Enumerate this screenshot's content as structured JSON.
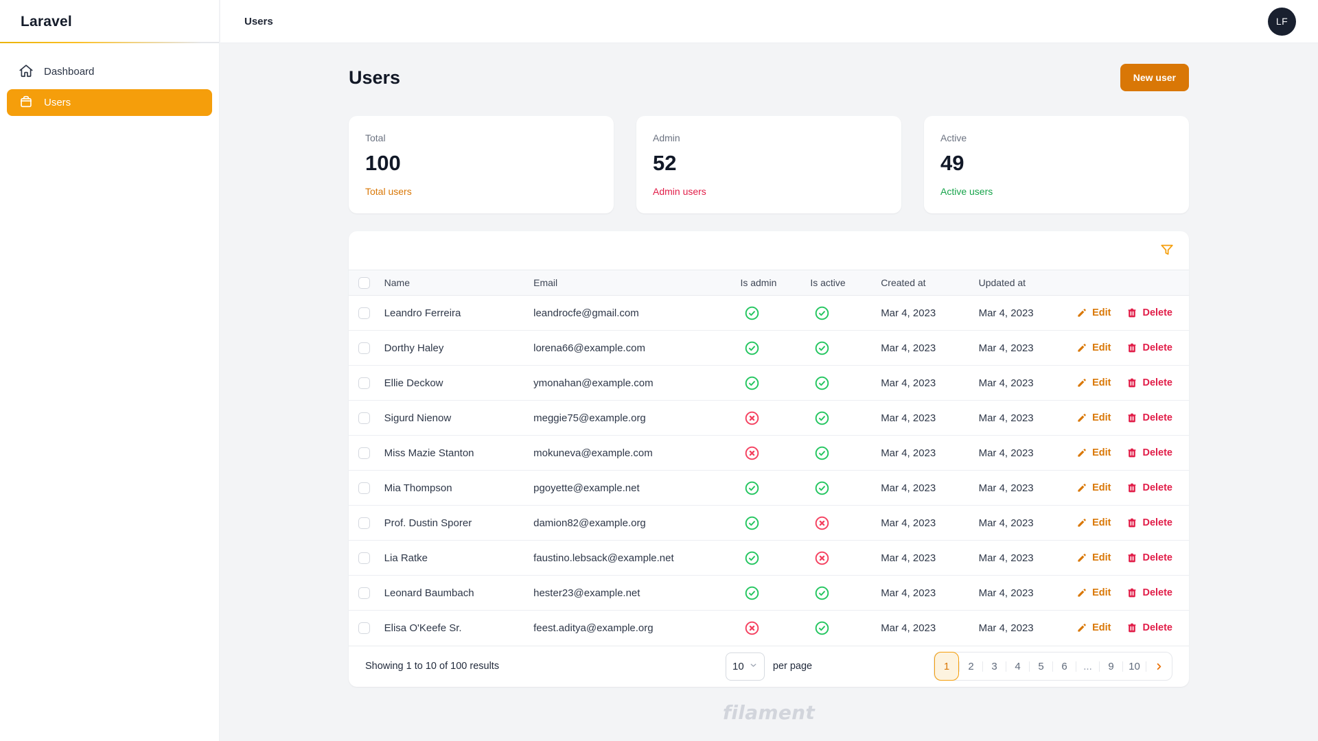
{
  "brand": "Laravel",
  "topbar": {
    "breadcrumb": "Users",
    "avatar_initials": "LF"
  },
  "sidebar": {
    "items": [
      {
        "label": "Dashboard",
        "icon": "home-icon",
        "active": false
      },
      {
        "label": "Users",
        "icon": "briefcase-icon",
        "active": true
      }
    ]
  },
  "page": {
    "title": "Users",
    "new_user_button": "New user"
  },
  "stats": [
    {
      "label": "Total",
      "value": "100",
      "description": "Total users",
      "color": "#d97706"
    },
    {
      "label": "Admin",
      "value": "52",
      "description": "Admin users",
      "color": "#e11d48"
    },
    {
      "label": "Active",
      "value": "49",
      "description": "Active users",
      "color": "#16a34a"
    }
  ],
  "table": {
    "filter_icon": "funnel-icon",
    "columns": [
      "Name",
      "Email",
      "Is admin",
      "Is active",
      "Created at",
      "Updated at"
    ],
    "actions": {
      "edit": "Edit",
      "delete": "Delete"
    },
    "rows": [
      {
        "name": "Leandro Ferreira",
        "email": "leandrocfe@gmail.com",
        "is_admin": true,
        "is_active": true,
        "created_at": "Mar 4, 2023",
        "updated_at": "Mar 4, 2023"
      },
      {
        "name": "Dorthy Haley",
        "email": "lorena66@example.com",
        "is_admin": true,
        "is_active": true,
        "created_at": "Mar 4, 2023",
        "updated_at": "Mar 4, 2023"
      },
      {
        "name": "Ellie Deckow",
        "email": "ymonahan@example.com",
        "is_admin": true,
        "is_active": true,
        "created_at": "Mar 4, 2023",
        "updated_at": "Mar 4, 2023"
      },
      {
        "name": "Sigurd Nienow",
        "email": "meggie75@example.org",
        "is_admin": false,
        "is_active": true,
        "created_at": "Mar 4, 2023",
        "updated_at": "Mar 4, 2023"
      },
      {
        "name": "Miss Mazie Stanton",
        "email": "mokuneva@example.com",
        "is_admin": false,
        "is_active": true,
        "created_at": "Mar 4, 2023",
        "updated_at": "Mar 4, 2023"
      },
      {
        "name": "Mia Thompson",
        "email": "pgoyette@example.net",
        "is_admin": true,
        "is_active": true,
        "created_at": "Mar 4, 2023",
        "updated_at": "Mar 4, 2023"
      },
      {
        "name": "Prof. Dustin Sporer",
        "email": "damion82@example.org",
        "is_admin": true,
        "is_active": false,
        "created_at": "Mar 4, 2023",
        "updated_at": "Mar 4, 2023"
      },
      {
        "name": "Lia Ratke",
        "email": "faustino.lebsack@example.net",
        "is_admin": true,
        "is_active": false,
        "created_at": "Mar 4, 2023",
        "updated_at": "Mar 4, 2023"
      },
      {
        "name": "Leonard Baumbach",
        "email": "hester23@example.net",
        "is_admin": true,
        "is_active": true,
        "created_at": "Mar 4, 2023",
        "updated_at": "Mar 4, 2023"
      },
      {
        "name": "Elisa O'Keefe Sr.",
        "email": "feest.aditya@example.org",
        "is_admin": false,
        "is_active": true,
        "created_at": "Mar 4, 2023",
        "updated_at": "Mar 4, 2023"
      }
    ],
    "status_icons": {
      "true": "check-circle-icon",
      "false": "x-circle-icon"
    }
  },
  "pagination": {
    "summary": "Showing 1 to 10 of 100 results",
    "per_page_value": "10",
    "per_page_label": "per page",
    "pages": [
      "1",
      "2",
      "3",
      "4",
      "5",
      "6",
      "...",
      "9",
      "10"
    ],
    "active_page": "1",
    "next_icon": "chevron-right-icon"
  },
  "footer": {
    "watermark": "filament"
  },
  "colors": {
    "primary": "#d97706",
    "primary_light": "#f59e0b",
    "danger": "#e11d48",
    "success_icon": "#22c55e",
    "danger_icon": "#f43f5e",
    "success_text": "#16a34a"
  }
}
